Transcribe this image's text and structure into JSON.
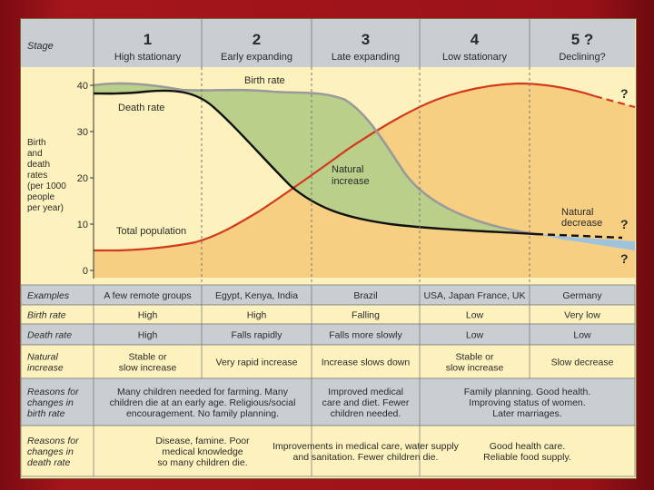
{
  "header": {
    "stage_label": "Stage",
    "stages": [
      {
        "num": "1",
        "name": "High stationary"
      },
      {
        "num": "2",
        "name": "Early expanding"
      },
      {
        "num": "3",
        "name": "Late expanding"
      },
      {
        "num": "4",
        "name": "Low stationary"
      },
      {
        "num": "5 ?",
        "name": "Declining?"
      }
    ]
  },
  "axis": {
    "ylabel": [
      "Birth",
      "and",
      "death",
      "rates",
      "(per 1000",
      "people",
      "per year)"
    ],
    "ticks": [
      "40",
      "30",
      "20",
      "10",
      "0"
    ]
  },
  "labels": {
    "birth_rate": "Birth rate",
    "death_rate": "Death rate",
    "natural_increase": [
      "Natural",
      "increase"
    ],
    "natural_decrease": [
      "Natural",
      "decrease"
    ],
    "total_population": "Total population",
    "q_top": "?",
    "q_mid": "?",
    "q_bot": "?"
  },
  "colors": {
    "birth_fill": "#b9cf8a",
    "population_fill": "#f6cf83",
    "decrease_fill": "#9fc3dc",
    "population_line": "#d23a1e",
    "death_line": "#111111",
    "birth_line": "#9a9a9a"
  },
  "table": {
    "rows": [
      {
        "label": [
          "Examples"
        ],
        "cells": [
          [
            "A few remote groups"
          ],
          [
            "Egypt, Kenya, India"
          ],
          [
            "Brazil"
          ],
          [
            "USA, Japan France, UK"
          ],
          [
            "Germany"
          ]
        ]
      },
      {
        "label": [
          "Birth rate"
        ],
        "cells": [
          [
            "High"
          ],
          [
            "High"
          ],
          [
            "Falling"
          ],
          [
            "Low"
          ],
          [
            "Very low"
          ]
        ]
      },
      {
        "label": [
          "Death rate"
        ],
        "cells": [
          [
            "High"
          ],
          [
            "Falls rapidly"
          ],
          [
            "Falls more slowly"
          ],
          [
            "Low"
          ],
          [
            "Low"
          ]
        ]
      },
      {
        "label": [
          "Natural",
          "increase"
        ],
        "cells": [
          [
            "Stable or",
            "slow increase"
          ],
          [
            "Very rapid increase"
          ],
          [
            "Increase slows down"
          ],
          [
            "Stable or",
            "slow increase"
          ],
          [
            "Slow decrease"
          ]
        ]
      },
      {
        "label": [
          "Reasons for",
          "changes in",
          "birth rate"
        ],
        "cells": [
          [
            "Many children needed for farming. Many",
            "children die at an early age. Religious/social",
            "encouragement. No family planning."
          ],
          [
            "Improved medical",
            "care and diet. Fewer",
            "children needed."
          ],
          [
            "Family planning. Good health.",
            "Improving status of women.",
            "Later marriages."
          ]
        ]
      },
      {
        "label": [
          "Reasons for",
          "changes in",
          "death rate"
        ],
        "cells": [
          [
            "Disease, famine. Poor",
            "medical knowledge",
            "so many children die."
          ],
          [
            "Improvements in medical care, water supply",
            "and sanitation. Fewer children die."
          ],
          [
            "Good health care.",
            "Reliable food supply."
          ]
        ]
      }
    ]
  }
}
